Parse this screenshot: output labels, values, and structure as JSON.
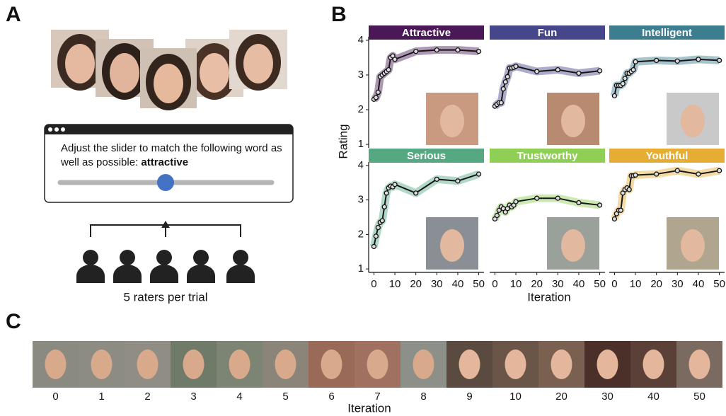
{
  "panels": [
    "A",
    "B",
    "C"
  ],
  "task": {
    "instruction": "Adjust the slider to match the following word as well as possible:",
    "word": "attractive",
    "caption": "5 raters per trial"
  },
  "y_label": "Rating",
  "x_label": "Iteration",
  "chart_data": [
    {
      "type": "line",
      "title": "Attractive",
      "color": "#4a1857",
      "x": [
        0,
        1,
        2,
        3,
        4,
        5,
        6,
        7,
        8,
        9,
        10,
        20,
        30,
        40,
        50
      ],
      "values": [
        2.3,
        2.35,
        2.5,
        2.95,
        3.0,
        3.05,
        3.1,
        3.15,
        3.5,
        3.55,
        3.45,
        3.68,
        3.72,
        3.72,
        3.68
      ],
      "xlim": [
        -2.5,
        52.5
      ],
      "ylim": [
        0.9,
        4.1
      ],
      "yticks": [
        1,
        2,
        3,
        4
      ]
    },
    {
      "type": "line",
      "title": "Fun",
      "color": "#46468a",
      "x": [
        0,
        1,
        2,
        3,
        4,
        5,
        6,
        7,
        8,
        9,
        10,
        20,
        30,
        40,
        50
      ],
      "values": [
        2.1,
        2.15,
        2.2,
        2.2,
        2.6,
        2.8,
        2.95,
        3.2,
        3.2,
        3.22,
        3.25,
        3.1,
        3.15,
        3.05,
        3.12
      ],
      "xlim": [
        -2.5,
        52.5
      ],
      "ylim": [
        0.9,
        4.1
      ]
    },
    {
      "type": "line",
      "title": "Intelligent",
      "color": "#3c7d8f",
      "x": [
        0,
        1,
        2,
        3,
        4,
        5,
        6,
        7,
        8,
        9,
        10,
        20,
        30,
        40,
        50
      ],
      "values": [
        2.4,
        2.7,
        2.7,
        2.7,
        2.75,
        2.9,
        3.05,
        3.05,
        3.1,
        3.15,
        3.38,
        3.42,
        3.4,
        3.45,
        3.42
      ],
      "xlim": [
        -2.5,
        52.5
      ],
      "ylim": [
        0.9,
        4.1
      ]
    },
    {
      "type": "line",
      "title": "Serious",
      "color": "#55a882",
      "x": [
        0,
        1,
        2,
        3,
        4,
        5,
        6,
        7,
        8,
        9,
        10,
        20,
        30,
        40,
        50
      ],
      "values": [
        1.65,
        1.95,
        2.2,
        2.35,
        2.4,
        2.8,
        3.2,
        3.35,
        3.4,
        3.38,
        3.45,
        3.2,
        3.6,
        3.55,
        3.75
      ],
      "xlim": [
        -2.5,
        52.5
      ],
      "ylim": [
        0.9,
        4.1
      ],
      "yticks": [
        1,
        2,
        3,
        4
      ],
      "xticks": [
        0,
        10,
        20,
        30,
        40,
        50
      ]
    },
    {
      "type": "line",
      "title": "Trustworthy",
      "color": "#8fcf56",
      "x": [
        0,
        1,
        2,
        3,
        4,
        5,
        6,
        7,
        8,
        9,
        10,
        20,
        30,
        40,
        50
      ],
      "values": [
        2.45,
        2.55,
        2.7,
        2.8,
        2.75,
        2.65,
        2.75,
        2.85,
        2.8,
        2.85,
        2.95,
        3.05,
        3.05,
        2.92,
        2.85
      ],
      "xlim": [
        -2.5,
        52.5
      ],
      "ylim": [
        0.9,
        4.1
      ],
      "xticks": [
        0,
        10,
        20,
        30,
        40,
        50
      ]
    },
    {
      "type": "line",
      "title": "Youthful",
      "color": "#e6ad35",
      "x": [
        0,
        1,
        2,
        3,
        4,
        5,
        6,
        7,
        8,
        9,
        10,
        20,
        30,
        40,
        50
      ],
      "values": [
        2.45,
        2.6,
        2.7,
        2.7,
        3.2,
        3.3,
        3.35,
        3.3,
        3.7,
        3.7,
        3.72,
        3.75,
        3.85,
        3.75,
        3.85
      ],
      "xlim": [
        -2.5,
        52.5
      ],
      "ylim": [
        0.9,
        4.1
      ],
      "xticks": [
        0,
        10,
        20,
        30,
        40,
        50
      ]
    }
  ],
  "strip": {
    "labels": [
      0,
      1,
      2,
      3,
      4,
      5,
      6,
      7,
      8,
      9,
      10,
      20,
      30,
      40,
      50
    ],
    "x_label": "Iteration"
  }
}
